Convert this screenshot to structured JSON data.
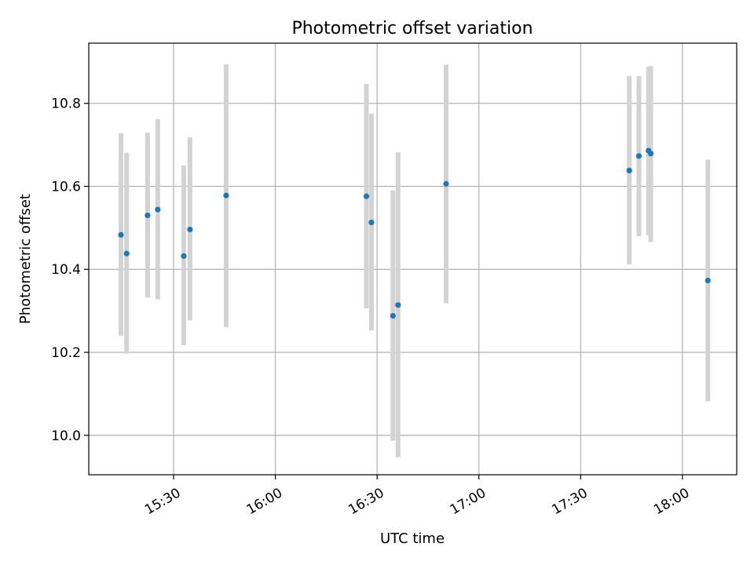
{
  "chart_data": {
    "type": "scatter",
    "title": "Photometric offset variation",
    "xlabel": "UTC time",
    "ylabel": "Photometric offset",
    "x_ticks": [
      "15:30",
      "16:00",
      "16:30",
      "17:00",
      "17:30",
      "18:00"
    ],
    "y_ticks": [
      "10.0",
      "10.2",
      "10.4",
      "10.6",
      "10.8"
    ],
    "xlim": [
      "15:05",
      "18:16"
    ],
    "ylim": [
      9.905,
      10.945
    ],
    "grid": true,
    "points": [
      {
        "x": "15:14:30",
        "y": 10.483,
        "err_low": 10.24,
        "err_high": 10.728
      },
      {
        "x": "15:16:10",
        "y": 10.438,
        "err_low": 10.197,
        "err_high": 10.681
      },
      {
        "x": "15:22:20",
        "y": 10.53,
        "err_low": 10.332,
        "err_high": 10.729
      },
      {
        "x": "15:25:20",
        "y": 10.544,
        "err_low": 10.328,
        "err_high": 10.762
      },
      {
        "x": "15:33:00",
        "y": 10.432,
        "err_low": 10.217,
        "err_high": 10.65
      },
      {
        "x": "15:34:50",
        "y": 10.496,
        "err_low": 10.277,
        "err_high": 10.718
      },
      {
        "x": "15:45:30",
        "y": 10.578,
        "err_low": 10.261,
        "err_high": 10.894
      },
      {
        "x": "16:26:50",
        "y": 10.576,
        "err_low": 10.306,
        "err_high": 10.847
      },
      {
        "x": "16:28:20",
        "y": 10.513,
        "err_low": 10.253,
        "err_high": 10.775
      },
      {
        "x": "16:34:40",
        "y": 10.288,
        "err_low": 9.987,
        "err_high": 10.59
      },
      {
        "x": "16:36:10",
        "y": 10.314,
        "err_low": 9.947,
        "err_high": 10.682
      },
      {
        "x": "16:50:20",
        "y": 10.606,
        "err_low": 10.318,
        "err_high": 10.893
      },
      {
        "x": "17:44:20",
        "y": 10.638,
        "err_low": 10.412,
        "err_high": 10.866
      },
      {
        "x": "17:47:10",
        "y": 10.673,
        "err_low": 10.48,
        "err_high": 10.866
      },
      {
        "x": "17:50:00",
        "y": 10.686,
        "err_low": 10.482,
        "err_high": 10.888
      },
      {
        "x": "17:50:40",
        "y": 10.679,
        "err_low": 10.466,
        "err_high": 10.89
      },
      {
        "x": "18:07:30",
        "y": 10.373,
        "err_low": 10.082,
        "err_high": 10.664
      }
    ],
    "colors": {
      "point": "#1f77b4",
      "errorbar": "#d3d3d3",
      "grid": "#b0b0b0"
    }
  }
}
